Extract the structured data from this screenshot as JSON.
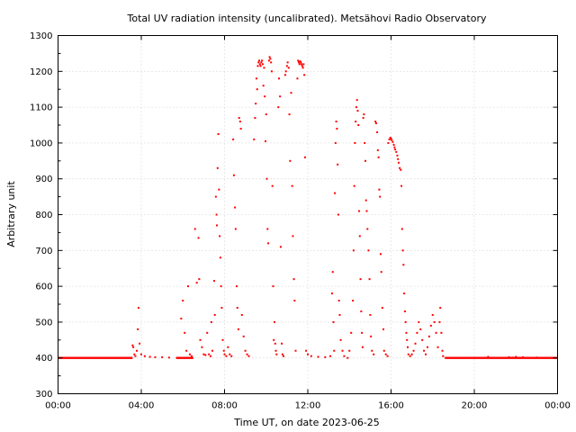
{
  "chart_data": {
    "type": "scatter",
    "title": "Total UV radiation intensity (uncalibrated). Metsähovi Radio Observatory",
    "xlabel": "Time UT, on date 2023-06-25",
    "ylabel": "Arbitrary unit",
    "xlim": [
      "00:00",
      "24:00"
    ],
    "ylim": [
      300,
      1300
    ],
    "x_ticks": [
      "00:00",
      "04:00",
      "08:00",
      "12:00",
      "16:00",
      "20:00",
      "00:00"
    ],
    "y_ticks": [
      300,
      400,
      500,
      600,
      700,
      800,
      900,
      1000,
      1100,
      1200,
      1300
    ],
    "grid": true,
    "legend": "none",
    "marker_color": "#ff0000",
    "series": [
      {
        "baseline_segments": [
          {
            "from": "00:00",
            "to": "03:35",
            "value": 400
          },
          {
            "from": "05:40",
            "to": "06:30",
            "value": 400
          },
          {
            "from": "18:35",
            "to": "24:00",
            "value": 400
          }
        ],
        "points": [
          [
            "03:35",
            435
          ],
          [
            "03:37",
            430
          ],
          [
            "03:40",
            410
          ],
          [
            "03:43",
            405
          ],
          [
            "03:47",
            420
          ],
          [
            "03:50",
            480
          ],
          [
            "03:52",
            540
          ],
          [
            "03:55",
            440
          ],
          [
            "04:00",
            410
          ],
          [
            "04:10",
            405
          ],
          [
            "04:25",
            403
          ],
          [
            "04:40",
            402
          ],
          [
            "05:00",
            402
          ],
          [
            "05:20",
            401
          ],
          [
            "05:55",
            510
          ],
          [
            "06:00",
            560
          ],
          [
            "06:05",
            470
          ],
          [
            "06:10",
            420
          ],
          [
            "06:15",
            600
          ],
          [
            "06:20",
            410
          ],
          [
            "06:25",
            405
          ],
          [
            "06:35",
            760
          ],
          [
            "06:40",
            610
          ],
          [
            "06:45",
            735
          ],
          [
            "06:47",
            620
          ],
          [
            "06:50",
            450
          ],
          [
            "06:55",
            430
          ],
          [
            "07:00",
            410
          ],
          [
            "07:05",
            408
          ],
          [
            "07:10",
            470
          ],
          [
            "07:15",
            410
          ],
          [
            "07:20",
            405
          ],
          [
            "07:22",
            500
          ],
          [
            "07:25",
            420
          ],
          [
            "07:30",
            615
          ],
          [
            "07:32",
            520
          ],
          [
            "07:35",
            850
          ],
          [
            "07:37",
            800
          ],
          [
            "07:38",
            770
          ],
          [
            "07:40",
            930
          ],
          [
            "07:42",
            1025
          ],
          [
            "07:44",
            870
          ],
          [
            "07:46",
            740
          ],
          [
            "07:48",
            680
          ],
          [
            "07:50",
            600
          ],
          [
            "07:52",
            540
          ],
          [
            "07:55",
            450
          ],
          [
            "07:58",
            420
          ],
          [
            "08:00",
            410
          ],
          [
            "08:05",
            405
          ],
          [
            "08:10",
            430
          ],
          [
            "08:15",
            410
          ],
          [
            "08:20",
            405
          ],
          [
            "08:25",
            1010
          ],
          [
            "08:27",
            910
          ],
          [
            "08:30",
            820
          ],
          [
            "08:32",
            760
          ],
          [
            "08:35",
            600
          ],
          [
            "08:37",
            540
          ],
          [
            "08:40",
            480
          ],
          [
            "08:42",
            1070
          ],
          [
            "08:45",
            1060
          ],
          [
            "08:47",
            1040
          ],
          [
            "08:50",
            520
          ],
          [
            "08:55",
            460
          ],
          [
            "09:00",
            420
          ],
          [
            "09:05",
            410
          ],
          [
            "09:10",
            405
          ],
          [
            "09:25",
            1010
          ],
          [
            "09:28",
            1070
          ],
          [
            "09:30",
            1110
          ],
          [
            "09:32",
            1180
          ],
          [
            "09:34",
            1150
          ],
          [
            "09:36",
            1215
          ],
          [
            "09:38",
            1225
          ],
          [
            "09:40",
            1230
          ],
          [
            "09:42",
            1220
          ],
          [
            "09:44",
            1215
          ],
          [
            "09:46",
            1225
          ],
          [
            "09:48",
            1230
          ],
          [
            "09:50",
            1220
          ],
          [
            "09:52",
            1160
          ],
          [
            "09:54",
            1210
          ],
          [
            "09:56",
            1130
          ],
          [
            "09:58",
            1005
          ],
          [
            "10:00",
            1080
          ],
          [
            "10:02",
            900
          ],
          [
            "10:04",
            760
          ],
          [
            "10:06",
            720
          ],
          [
            "10:08",
            1230
          ],
          [
            "10:10",
            1240
          ],
          [
            "10:12",
            1235
          ],
          [
            "10:14",
            1225
          ],
          [
            "10:16",
            1200
          ],
          [
            "10:18",
            880
          ],
          [
            "10:20",
            600
          ],
          [
            "10:22",
            450
          ],
          [
            "10:24",
            500
          ],
          [
            "10:26",
            440
          ],
          [
            "10:28",
            420
          ],
          [
            "10:30",
            410
          ],
          [
            "10:35",
            1100
          ],
          [
            "10:37",
            1180
          ],
          [
            "10:40",
            1130
          ],
          [
            "10:42",
            710
          ],
          [
            "10:45",
            440
          ],
          [
            "10:47",
            410
          ],
          [
            "10:50",
            405
          ],
          [
            "10:55",
            1190
          ],
          [
            "10:57",
            1200
          ],
          [
            "11:00",
            1215
          ],
          [
            "11:02",
            1225
          ],
          [
            "11:05",
            1210
          ],
          [
            "11:07",
            1080
          ],
          [
            "11:09",
            950
          ],
          [
            "11:12",
            1140
          ],
          [
            "11:15",
            880
          ],
          [
            "11:17",
            740
          ],
          [
            "11:20",
            620
          ],
          [
            "11:22",
            560
          ],
          [
            "11:25",
            420
          ],
          [
            "11:30",
            1180
          ],
          [
            "11:32",
            1230
          ],
          [
            "11:34",
            1225
          ],
          [
            "11:36",
            1220
          ],
          [
            "11:38",
            1228
          ],
          [
            "11:40",
            1225
          ],
          [
            "11:42",
            1220
          ],
          [
            "11:44",
            1215
          ],
          [
            "11:46",
            1210
          ],
          [
            "11:48",
            1220
          ],
          [
            "11:50",
            1190
          ],
          [
            "11:52",
            960
          ],
          [
            "11:55",
            420
          ],
          [
            "12:00",
            410
          ],
          [
            "12:10",
            405
          ],
          [
            "12:30",
            403
          ],
          [
            "12:50",
            402
          ],
          [
            "13:05",
            405
          ],
          [
            "13:10",
            580
          ],
          [
            "13:12",
            640
          ],
          [
            "13:14",
            500
          ],
          [
            "13:16",
            420
          ],
          [
            "13:18",
            860
          ],
          [
            "13:20",
            1000
          ],
          [
            "13:22",
            1060
          ],
          [
            "13:24",
            1040
          ],
          [
            "13:26",
            940
          ],
          [
            "13:28",
            800
          ],
          [
            "13:30",
            560
          ],
          [
            "13:32",
            520
          ],
          [
            "13:35",
            450
          ],
          [
            "13:40",
            420
          ],
          [
            "13:45",
            405
          ],
          [
            "13:55",
            400
          ],
          [
            "14:00",
            420
          ],
          [
            "14:05",
            470
          ],
          [
            "14:10",
            560
          ],
          [
            "14:12",
            700
          ],
          [
            "14:14",
            880
          ],
          [
            "14:16",
            1000
          ],
          [
            "14:18",
            1060
          ],
          [
            "14:20",
            1100
          ],
          [
            "14:22",
            1120
          ],
          [
            "14:24",
            1090
          ],
          [
            "14:26",
            1050
          ],
          [
            "14:28",
            810
          ],
          [
            "14:30",
            740
          ],
          [
            "14:32",
            620
          ],
          [
            "14:34",
            530
          ],
          [
            "14:36",
            470
          ],
          [
            "14:38",
            430
          ],
          [
            "14:40",
            1070
          ],
          [
            "14:42",
            1080
          ],
          [
            "14:44",
            1000
          ],
          [
            "14:46",
            950
          ],
          [
            "14:48",
            840
          ],
          [
            "14:50",
            810
          ],
          [
            "14:52",
            760
          ],
          [
            "14:55",
            700
          ],
          [
            "14:58",
            620
          ],
          [
            "15:00",
            520
          ],
          [
            "15:02",
            460
          ],
          [
            "15:05",
            420
          ],
          [
            "15:10",
            410
          ],
          [
            "15:15",
            1060
          ],
          [
            "15:17",
            1055
          ],
          [
            "15:20",
            1030
          ],
          [
            "15:22",
            980
          ],
          [
            "15:24",
            960
          ],
          [
            "15:26",
            870
          ],
          [
            "15:28",
            850
          ],
          [
            "15:30",
            690
          ],
          [
            "15:32",
            640
          ],
          [
            "15:35",
            540
          ],
          [
            "15:38",
            480
          ],
          [
            "15:40",
            420
          ],
          [
            "15:45",
            410
          ],
          [
            "15:50",
            405
          ],
          [
            "15:52",
            1000
          ],
          [
            "15:55",
            1010
          ],
          [
            "15:58",
            1015
          ],
          [
            "16:00",
            1012
          ],
          [
            "16:02",
            1008
          ],
          [
            "16:05",
            1003
          ],
          [
            "16:08",
            995
          ],
          [
            "16:10",
            988
          ],
          [
            "16:12",
            982
          ],
          [
            "16:15",
            975
          ],
          [
            "16:18",
            965
          ],
          [
            "16:20",
            955
          ],
          [
            "16:22",
            945
          ],
          [
            "16:25",
            930
          ],
          [
            "16:28",
            925
          ],
          [
            "16:30",
            880
          ],
          [
            "16:32",
            760
          ],
          [
            "16:34",
            700
          ],
          [
            "16:36",
            660
          ],
          [
            "16:38",
            580
          ],
          [
            "16:40",
            530
          ],
          [
            "16:42",
            500
          ],
          [
            "16:44",
            470
          ],
          [
            "16:46",
            450
          ],
          [
            "16:48",
            430
          ],
          [
            "16:50",
            410
          ],
          [
            "16:55",
            405
          ],
          [
            "17:00",
            410
          ],
          [
            "17:05",
            420
          ],
          [
            "17:10",
            440
          ],
          [
            "17:15",
            470
          ],
          [
            "17:20",
            500
          ],
          [
            "17:25",
            480
          ],
          [
            "17:30",
            450
          ],
          [
            "17:35",
            420
          ],
          [
            "17:40",
            410
          ],
          [
            "17:45",
            430
          ],
          [
            "17:50",
            460
          ],
          [
            "17:55",
            490
          ],
          [
            "18:00",
            520
          ],
          [
            "18:05",
            500
          ],
          [
            "18:10",
            470
          ],
          [
            "18:15",
            430
          ],
          [
            "18:20",
            500
          ],
          [
            "18:22",
            540
          ],
          [
            "18:25",
            470
          ],
          [
            "18:28",
            420
          ],
          [
            "18:30",
            405
          ],
          [
            "20:40",
            403
          ],
          [
            "21:40",
            402
          ],
          [
            "21:50",
            401
          ],
          [
            "22:00",
            403
          ],
          [
            "22:20",
            402
          ],
          [
            "23:00",
            401
          ]
        ]
      }
    ]
  }
}
